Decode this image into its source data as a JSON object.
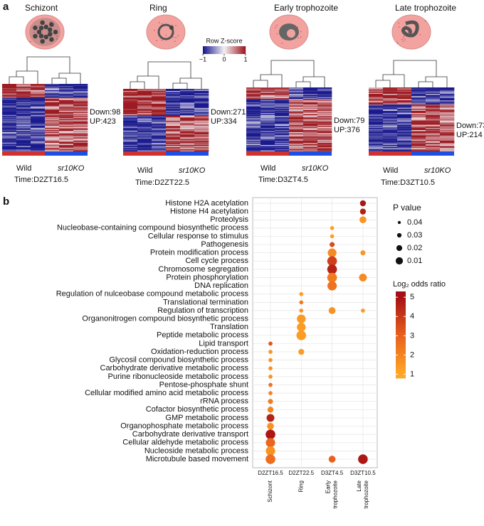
{
  "panel_a": {
    "label": "a",
    "zscore": {
      "title": "Row Z-score",
      "ticks": [
        {
          "value": -1,
          "label": "−1"
        },
        0,
        1
      ]
    },
    "stages": [
      {
        "name": "Schizont",
        "down": "Down:98",
        "up": "UP:423",
        "wild": "Wild",
        "ko": "sr10KO",
        "time": "Time:D2ZT16.5"
      },
      {
        "name": "Ring",
        "down": "Down:271",
        "up": "UP:334",
        "wild": "Wild",
        "ko": "sr10KO",
        "time": "Time:D2ZT22.5"
      },
      {
        "name": "Early trophozoite",
        "down": "Down:79",
        "up": "UP:376",
        "wild": "Wild",
        "ko": "sr10KO",
        "time": "Time:D3ZT4.5"
      },
      {
        "name": "Late trophozoite",
        "down": "Down:73",
        "up": "UP:214",
        "wild": "Wild",
        "ko": "sr10KO",
        "time": "Time:D3ZT10.5"
      }
    ]
  },
  "chart_data": {
    "type": "dot",
    "label": "b",
    "categories": [
      "D2ZT16.5",
      "D2ZT22.5",
      "D3ZT4.5",
      "D3ZT10.5"
    ],
    "category_groups": [
      [
        "Schizont"
      ],
      [
        "Ring"
      ],
      [
        "Early",
        "trophozoite"
      ],
      [
        "Late",
        "trophozoite"
      ]
    ],
    "terms": [
      "Histone H2A acetylation",
      "Histone H4 acetylation",
      "Proteolysis",
      "Nucleobase-containing compound biosynthetic process",
      "Cellular response to stimulus",
      "Pathogenesis",
      "Protein modification process",
      "Cell cycle process",
      "Chromosome segregation",
      "Protein phosphorylation",
      "DNA replication",
      "Regulation of nulceobase compound metabolic process",
      "Translational termination",
      "Regulation of transcription",
      "Organonitrogen compound biosynthetic process",
      "Translation",
      "Peptide metabolic process",
      "Lipid transport",
      "Oxidation-reduction process",
      "Glycosil compound biosynthetic process",
      "Carbohydrate derivative metabolic process",
      "Purine ribonucleoside metabolic process",
      "Pentose-phosphate shunt",
      "Cellular modified amino acid metabolic process",
      "rRNA process",
      "Cofactor biosynthetic process",
      "GMP metabolic process",
      "Organophosphate metabolic process",
      "Carbohydrate derivative transport",
      "Cellular aldehyde metabolic process",
      "Nucleoside metabolic process",
      "Microtubule based movement"
    ],
    "points": [
      {
        "x": "D3ZT10.5",
        "y": "Histone H2A acetylation",
        "p": 0.03,
        "ratio": 4.8
      },
      {
        "x": "D3ZT10.5",
        "y": "Histone H4 acetylation",
        "p": 0.03,
        "ratio": 4.6
      },
      {
        "x": "D3ZT10.5",
        "y": "Proteolysis",
        "p": 0.025,
        "ratio": 1.5
      },
      {
        "x": "D3ZT10.5",
        "y": "Protein modification process",
        "p": 0.035,
        "ratio": 1.5
      },
      {
        "x": "D3ZT10.5",
        "y": "Protein phosphorylation",
        "p": 0.02,
        "ratio": 1.8
      },
      {
        "x": "D3ZT10.5",
        "y": "Regulation of transcription",
        "p": 0.04,
        "ratio": 1.3
      },
      {
        "x": "D3ZT10.5",
        "y": "Microtubule based movement",
        "p": 0.01,
        "ratio": 4.8
      },
      {
        "x": "D3ZT4.5",
        "y": "Nucleobase-containing compound biosynthetic process",
        "p": 0.04,
        "ratio": 1.2
      },
      {
        "x": "D3ZT4.5",
        "y": "Cellular response to stimulus",
        "p": 0.04,
        "ratio": 1.2
      },
      {
        "x": "D3ZT4.5",
        "y": "Pathogenesis",
        "p": 0.035,
        "ratio": 3.5
      },
      {
        "x": "D3ZT4.5",
        "y": "Protein modification process",
        "p": 0.015,
        "ratio": 1.8
      },
      {
        "x": "D3ZT4.5",
        "y": "Cell cycle process",
        "p": 0.01,
        "ratio": 3.8
      },
      {
        "x": "D3ZT4.5",
        "y": "Chromosome segregation",
        "p": 0.01,
        "ratio": 4.5
      },
      {
        "x": "D3ZT4.5",
        "y": "Protein phosphorylation",
        "p": 0.01,
        "ratio": 2.2
      },
      {
        "x": "D3ZT4.5",
        "y": "DNA replication",
        "p": 0.012,
        "ratio": 2.5
      },
      {
        "x": "D3ZT4.5",
        "y": "Regulation of transcription",
        "p": 0.025,
        "ratio": 1.6
      },
      {
        "x": "D3ZT4.5",
        "y": "Microtubule based movement",
        "p": 0.025,
        "ratio": 3
      },
      {
        "x": "D2ZT22.5",
        "y": "Regulation of nulceobase compound metabolic process",
        "p": 0.04,
        "ratio": 1.2
      },
      {
        "x": "D2ZT22.5",
        "y": "Translational termination",
        "p": 0.04,
        "ratio": 2.2
      },
      {
        "x": "D2ZT22.5",
        "y": "Regulation of transcription",
        "p": 0.04,
        "ratio": 1.5
      },
      {
        "x": "D2ZT22.5",
        "y": "Organonitrogen compound biosynthetic process",
        "p": 0.015,
        "ratio": 1.4
      },
      {
        "x": "D2ZT22.5",
        "y": "Translation",
        "p": 0.015,
        "ratio": 1.3
      },
      {
        "x": "D2ZT22.5",
        "y": "Peptide metabolic process",
        "p": 0.01,
        "ratio": 1.3
      },
      {
        "x": "D2ZT22.5",
        "y": "Oxidation-reduction process",
        "p": 0.03,
        "ratio": 1.3
      },
      {
        "x": "D2ZT16.5",
        "y": "Lipid transport",
        "p": 0.04,
        "ratio": 3.2
      },
      {
        "x": "D2ZT16.5",
        "y": "Oxidation-reduction process",
        "p": 0.04,
        "ratio": 1.5
      },
      {
        "x": "D2ZT16.5",
        "y": "Glycosil compound biosynthetic process",
        "p": 0.04,
        "ratio": 1.5
      },
      {
        "x": "D2ZT16.5",
        "y": "Carbohydrate derivative metabolic process",
        "p": 0.04,
        "ratio": 1.6
      },
      {
        "x": "D2ZT16.5",
        "y": "Purine ribonucleoside metabolic process",
        "p": 0.04,
        "ratio": 1.5
      },
      {
        "x": "D2ZT16.5",
        "y": "Pentose-phosphate shunt",
        "p": 0.04,
        "ratio": 2.5
      },
      {
        "x": "D2ZT16.5",
        "y": "Cellular modified amino acid metabolic process",
        "p": 0.04,
        "ratio": 2
      },
      {
        "x": "D2ZT16.5",
        "y": "rRNA process",
        "p": 0.035,
        "ratio": 2.2
      },
      {
        "x": "D2ZT16.5",
        "y": "Cofactor biosynthetic process",
        "p": 0.03,
        "ratio": 2
      },
      {
        "x": "D2ZT16.5",
        "y": "GMP metabolic process",
        "p": 0.02,
        "ratio": 4.5
      },
      {
        "x": "D2ZT16.5",
        "y": "Organophosphate metabolic process",
        "p": 0.025,
        "ratio": 1.6
      },
      {
        "x": "D2ZT16.5",
        "y": "Carbohydrate derivative transport",
        "p": 0.01,
        "ratio": 4.8
      },
      {
        "x": "D2ZT16.5",
        "y": "Cellular aldehyde metabolic process",
        "p": 0.012,
        "ratio": 2.8
      },
      {
        "x": "D2ZT16.5",
        "y": "Nucleoside metabolic process",
        "p": 0.012,
        "ratio": 1.6
      },
      {
        "x": "D2ZT16.5",
        "y": "Microtubule based movement",
        "p": 0.01,
        "ratio": 2.6
      }
    ],
    "size_title": "P value",
    "size_ticks": [
      0.04,
      0.03,
      0.02,
      0.01
    ],
    "color_title": "Log₂ odds ratio",
    "color_lim": [
      0.8,
      5.3
    ],
    "color_ticks": [
      1,
      2,
      3,
      4,
      5
    ],
    "colors": [
      "#ffa726",
      "#e8601c",
      "#a50f15"
    ],
    "grid": true
  }
}
